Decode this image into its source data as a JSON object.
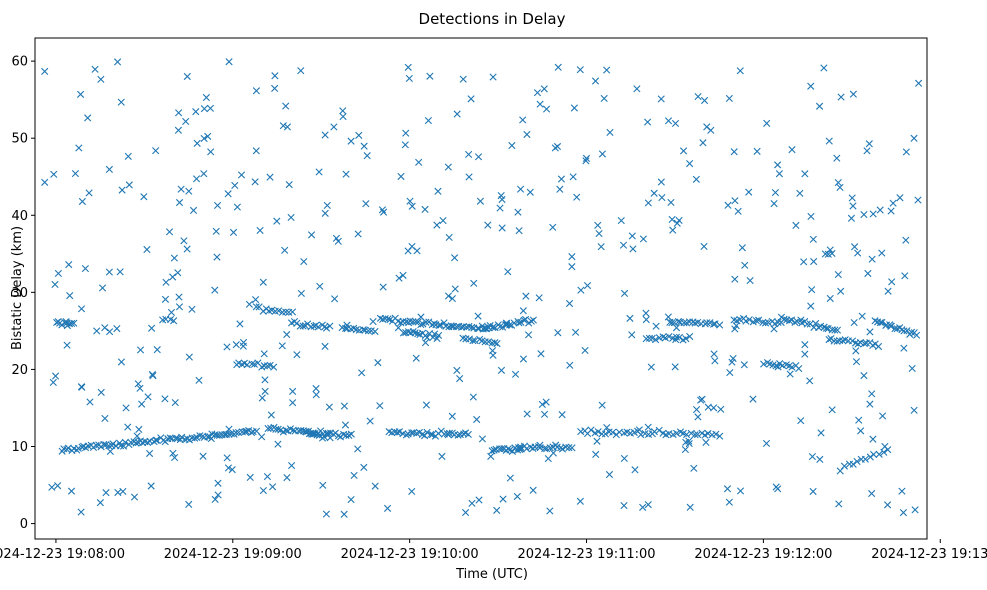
{
  "chart_data": {
    "type": "scatter",
    "title": "Detections in Delay",
    "xlabel": "Time (UTC)",
    "ylabel": "Bistatic Delay (km)",
    "marker": "x",
    "color": "#1f77b4",
    "grid": false,
    "xlim_seconds": [
      -7.1,
      295.5
    ],
    "ylim": [
      -2.0,
      63.0
    ],
    "x_ticks": [
      {
        "seconds": 0,
        "label": "2024-12-23 19:08:00"
      },
      {
        "seconds": 60,
        "label": "2024-12-23 19:09:00"
      },
      {
        "seconds": 120,
        "label": "2024-12-23 19:10:00"
      },
      {
        "seconds": 180,
        "label": "2024-12-23 19:11:00"
      },
      {
        "seconds": 240,
        "label": "2024-12-23 19:12:00"
      },
      {
        "seconds": 300,
        "label": "2024-12-23 19:13:00"
      }
    ],
    "y_ticks": [
      0,
      10,
      20,
      30,
      40,
      50,
      60
    ],
    "tracks": [
      {
        "x_start": 2,
        "x_end": 68,
        "y_start": 9.6,
        "y_end": 12.0,
        "count": 80
      },
      {
        "x_start": 72,
        "x_end": 100,
        "y_start": 12.4,
        "y_end": 11.3,
        "count": 34
      },
      {
        "x_start": 113,
        "x_end": 140,
        "y_start": 11.8,
        "y_end": 11.6,
        "count": 30
      },
      {
        "x_start": 148,
        "x_end": 158,
        "y_start": 9.5,
        "y_end": 9.7,
        "count": 14
      },
      {
        "x_start": 157,
        "x_end": 175,
        "y_start": 10.0,
        "y_end": 9.8,
        "count": 20
      },
      {
        "x_start": 178,
        "x_end": 225,
        "y_start": 11.9,
        "y_end": 11.6,
        "count": 40
      },
      {
        "x_start": 0,
        "x_end": 6,
        "y_start": 26.1,
        "y_end": 26.0,
        "count": 10
      },
      {
        "x_start": 36,
        "x_end": 40,
        "y_start": 26.5,
        "y_end": 26.3,
        "count": 4
      },
      {
        "x_start": 68,
        "x_end": 80,
        "y_start": 28.0,
        "y_end": 27.3,
        "count": 12
      },
      {
        "x_start": 62,
        "x_end": 74,
        "y_start": 20.8,
        "y_end": 20.4,
        "count": 12
      },
      {
        "x_start": 80,
        "x_end": 93,
        "y_start": 25.9,
        "y_end": 25.5,
        "count": 15
      },
      {
        "x_start": 97,
        "x_end": 108,
        "y_start": 25.3,
        "y_end": 25.0,
        "count": 12
      },
      {
        "x_start": 110,
        "x_end": 148,
        "y_start": 26.5,
        "y_end": 25.3,
        "count": 45
      },
      {
        "x_start": 118,
        "x_end": 130,
        "y_start": 25.0,
        "y_end": 24.2,
        "count": 16
      },
      {
        "x_start": 145,
        "x_end": 162,
        "y_start": 25.3,
        "y_end": 26.4,
        "count": 22
      },
      {
        "x_start": 138,
        "x_end": 150,
        "y_start": 24.0,
        "y_end": 23.5,
        "count": 12
      },
      {
        "x_start": 200,
        "x_end": 215,
        "y_start": 24.0,
        "y_end": 24.2,
        "count": 14
      },
      {
        "x_start": 208,
        "x_end": 225,
        "y_start": 26.2,
        "y_end": 25.8,
        "count": 18
      },
      {
        "x_start": 230,
        "x_end": 246,
        "y_start": 26.5,
        "y_end": 26.0,
        "count": 16
      },
      {
        "x_start": 240,
        "x_end": 252,
        "y_start": 20.7,
        "y_end": 20.4,
        "count": 12
      },
      {
        "x_start": 246,
        "x_end": 265,
        "y_start": 26.8,
        "y_end": 25.0,
        "count": 22
      },
      {
        "x_start": 262,
        "x_end": 279,
        "y_start": 23.8,
        "y_end": 23.2,
        "count": 18
      },
      {
        "x_start": 278,
        "x_end": 292,
        "y_start": 26.4,
        "y_end": 24.4,
        "count": 18
      },
      {
        "x_start": 266,
        "x_end": 282,
        "y_start": 7.0,
        "y_end": 9.5,
        "count": 12
      },
      {
        "x_start": 85,
        "x_end": 93,
        "y_start": 11.8,
        "y_end": 11.2,
        "count": 10
      }
    ],
    "scatter": {
      "count": 520,
      "x_range": [
        -5,
        293
      ],
      "y_range": [
        1.0,
        60.0
      ],
      "seed": 20241223
    }
  }
}
